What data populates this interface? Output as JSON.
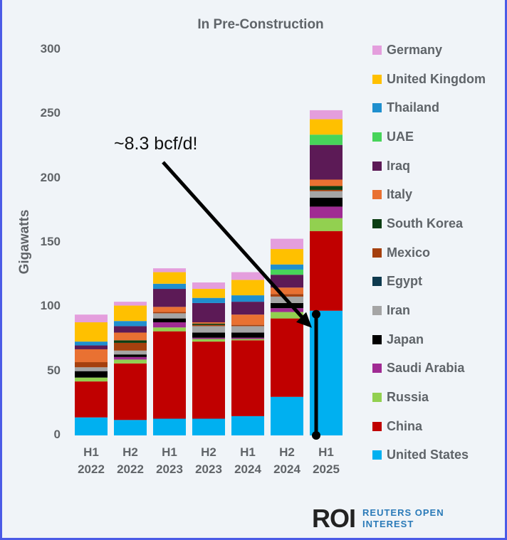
{
  "chart_data": {
    "type": "bar",
    "stacked": true,
    "title": "In Pre-Construction",
    "xlabel": "",
    "ylabel": "Gigawatts",
    "ylim": [
      0,
      300
    ],
    "yticks": [
      "0",
      "50",
      "100",
      "150",
      "200",
      "250",
      "300"
    ],
    "categories": [
      [
        "H1",
        "2022"
      ],
      [
        "H2",
        "2022"
      ],
      [
        "H1",
        "2023"
      ],
      [
        "H2",
        "2023"
      ],
      [
        "H1",
        "2024"
      ],
      [
        "H2",
        "2024"
      ],
      [
        "H1",
        "2025"
      ]
    ],
    "legend_position": "right",
    "series": [
      {
        "name": "United States",
        "color": "#00b0f0",
        "values": [
          14,
          12,
          13,
          13,
          15,
          30,
          97
        ]
      },
      {
        "name": "China",
        "color": "#c00000",
        "values": [
          28,
          44,
          68,
          60,
          59,
          61,
          62
        ]
      },
      {
        "name": "Russia",
        "color": "#92d050",
        "values": [
          3,
          3,
          3,
          2,
          1,
          5,
          10
        ]
      },
      {
        "name": "Saudi Arabia",
        "color": "#a02b93",
        "values": [
          0,
          2,
          4,
          1,
          1,
          3,
          9
        ]
      },
      {
        "name": "Japan",
        "color": "#000000",
        "values": [
          5,
          2,
          3,
          4,
          4,
          4,
          7
        ]
      },
      {
        "name": "Iran",
        "color": "#a5a5a5",
        "values": [
          3,
          3,
          4,
          5,
          5,
          5,
          5
        ]
      },
      {
        "name": "Egypt",
        "color": "#0e3a4e",
        "values": [
          0,
          0,
          0,
          0,
          0,
          0,
          0
        ]
      },
      {
        "name": "Mexico",
        "color": "#a5400e",
        "values": [
          4,
          6,
          1,
          1,
          1,
          2,
          1
        ]
      },
      {
        "name": "South Korea",
        "color": "#0b3d12",
        "values": [
          0,
          2,
          0,
          1,
          0,
          0,
          3
        ]
      },
      {
        "name": "Italy",
        "color": "#e97132",
        "values": [
          10,
          6,
          4,
          1,
          8,
          5,
          5
        ]
      },
      {
        "name": "Iraq",
        "color": "#5c1a56",
        "values": [
          3,
          5,
          14,
          15,
          10,
          10,
          27
        ]
      },
      {
        "name": "UAE",
        "color": "#47d45a",
        "values": [
          0,
          0,
          0,
          0,
          0,
          4,
          8
        ]
      },
      {
        "name": "Thailand",
        "color": "#1f8fce",
        "values": [
          3,
          4,
          4,
          4,
          5,
          4,
          0
        ]
      },
      {
        "name": "United Kingdom",
        "color": "#ffc000",
        "values": [
          15,
          12,
          9,
          7,
          12,
          12,
          12
        ]
      },
      {
        "name": "Germany",
        "color": "#e49edd",
        "values": [
          6,
          3,
          3,
          5,
          6,
          8,
          7
        ]
      }
    ],
    "annotations": [
      {
        "text": "~8.3 bcf/d!",
        "points_to": "H1 2025 United States segment"
      }
    ]
  },
  "branding": {
    "logo": "ROI",
    "line1": "REUTERS OPEN",
    "line2": "INTEREST"
  }
}
